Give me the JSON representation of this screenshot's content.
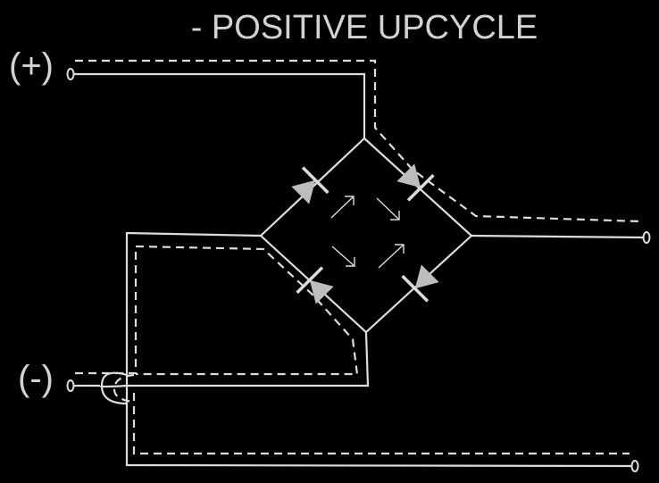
{
  "title": "- POSITIVE UPCYCLE",
  "terminals": {
    "positive": "(+)",
    "negative": "(-)"
  },
  "colors": {
    "background": "#000000",
    "line": "#dcdcdc",
    "text": "#d2d2d2",
    "diode_fill": "#bdbdbd"
  }
}
